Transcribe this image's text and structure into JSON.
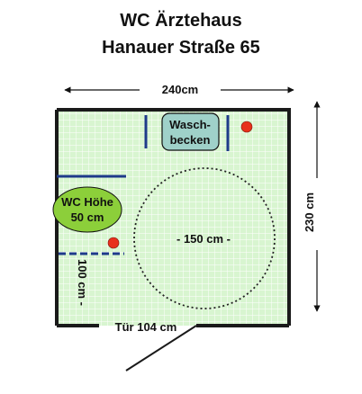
{
  "title": {
    "line1": "WC Ärztehaus",
    "line2": "Hanauer Straße 65"
  },
  "dimensions": {
    "width": "240cm",
    "height": "230 cm",
    "door": "Tür 104 cm",
    "side_depth": "100 cm -"
  },
  "fixtures": {
    "sink_line1": "Wasch-",
    "sink_line2": "becken",
    "wc_line1": "WC Höhe",
    "wc_line2": "50 cm",
    "turning_circle": "- 150 cm -"
  },
  "colors": {
    "floor": "#d8f5d0",
    "grid": "#ffffff",
    "wall": "#1a1a1a",
    "wc": "#8ccf3a",
    "sink": "#9fd1c9",
    "marker": "#e8301c",
    "pipe": "#1e3a8a"
  }
}
